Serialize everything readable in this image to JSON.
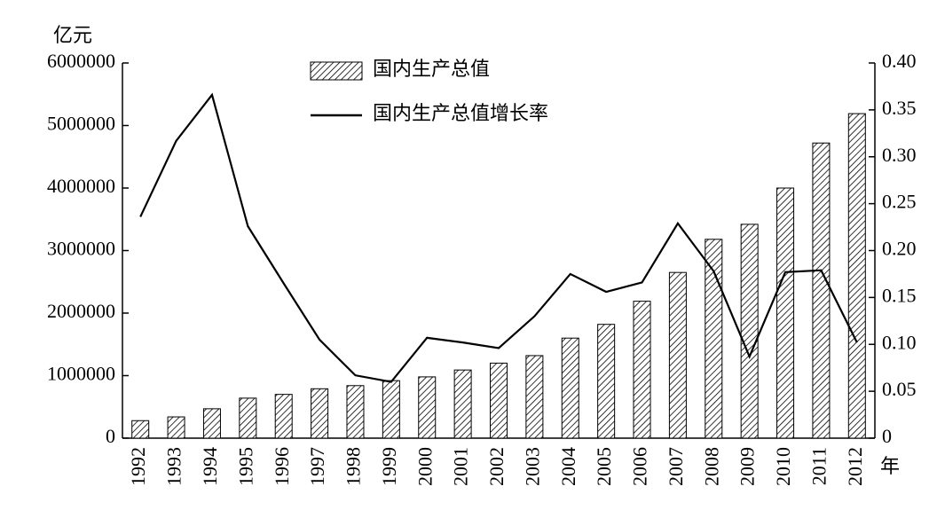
{
  "chart_data": {
    "type": "bar",
    "y_label": "亿元",
    "x_label": "年",
    "categories": [
      "1992",
      "1993",
      "1994",
      "1995",
      "1996",
      "1997",
      "1998",
      "1999",
      "2000",
      "2001",
      "2002",
      "2003",
      "2004",
      "2005",
      "2006",
      "2007",
      "2008",
      "2009",
      "2010",
      "2011",
      "2012"
    ],
    "series": [
      {
        "name": "国内生产总值",
        "type": "bar",
        "color": "#000000",
        "values": [
          280000,
          340000,
          470000,
          640000,
          700000,
          790000,
          840000,
          920000,
          980000,
          1090000,
          1200000,
          1320000,
          1600000,
          1820000,
          2190000,
          2650000,
          3180000,
          3420000,
          4000000,
          4720000,
          5190000
        ]
      },
      {
        "name": "国内生产总值增长率",
        "type": "line",
        "axis": "y2",
        "color": "#000000",
        "values": [
          0.236,
          0.317,
          0.366,
          0.226,
          0.165,
          0.105,
          0.067,
          0.06,
          0.107,
          0.102,
          0.096,
          0.13,
          0.175,
          0.156,
          0.166,
          0.229,
          0.178,
          0.087,
          0.177,
          0.179,
          0.102
        ]
      }
    ],
    "ylim": [
      0,
      6000000
    ],
    "yticks": [
      0,
      1000000,
      2000000,
      3000000,
      4000000,
      5000000,
      6000000
    ],
    "y2lim": [
      0,
      0.4
    ],
    "y2ticks": [
      0,
      0.05,
      {
        "value": 0.1,
        "label": "0.10"
      },
      0.15,
      {
        "value": 0.2,
        "label": "0.20"
      },
      0.25,
      {
        "value": 0.3,
        "label": "0.30"
      },
      0.35,
      {
        "value": 0.4,
        "label": "0.40"
      }
    ],
    "legend": "top"
  }
}
